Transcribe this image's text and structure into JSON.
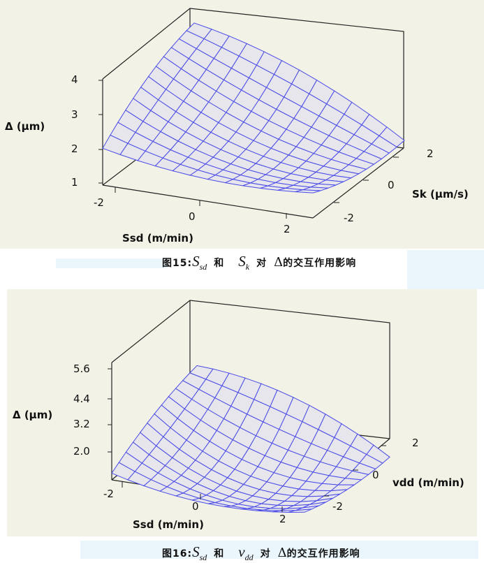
{
  "chart_data": [
    {
      "type": "surface",
      "zlabel": "Δ (μm)",
      "xlabel": "Ssd (m/min)",
      "ylabel": "Sk (μm/s)",
      "x_ticks": [
        "-2",
        "0",
        "2"
      ],
      "y_ticks": [
        "-2",
        "0",
        "2"
      ],
      "z_ticks": [
        "1",
        "2",
        "3",
        "4"
      ],
      "x_range": [
        -3,
        3
      ],
      "y_range": [
        -3,
        3
      ],
      "z_range": [
        0.7,
        4.9
      ],
      "surface_color": "#4a4ae8",
      "fill_color": "#e6e6ec",
      "background": "#f2f2e6",
      "surface_points": [
        {
          "x": -3,
          "y": 3,
          "z": 4.9
        },
        {
          "x": -3,
          "y": -3,
          "z": 2.0
        },
        {
          "x": 3,
          "y": 3,
          "z": 2.1
        },
        {
          "x": 3,
          "y": -3,
          "z": 1.9
        }
      ]
    },
    {
      "type": "surface",
      "zlabel": "Δ (μm)",
      "xlabel": "Ssd (m/min)",
      "ylabel": "vdd (m/min)",
      "x_ticks": [
        "-2",
        "0",
        "2"
      ],
      "y_ticks": [
        "-2",
        "0",
        "2"
      ],
      "z_ticks": [
        "2.0",
        "3.2",
        "4.4",
        "5.6"
      ],
      "x_range": [
        -3,
        3
      ],
      "y_range": [
        -3,
        3
      ],
      "z_range": [
        1.5,
        6.5
      ],
      "surface_color": "#4a4ae8",
      "fill_color": "#e6e6ec",
      "background": "#f2f2e6",
      "surface_points": [
        {
          "x": -3,
          "y": 3,
          "z": 6.5
        },
        {
          "x": -3,
          "y": -3,
          "z": 3.4
        },
        {
          "x": 3,
          "y": 3,
          "z": 3.6
        },
        {
          "x": 3,
          "y": -3,
          "z": 3.2
        }
      ]
    }
  ],
  "captions": [
    {
      "prefix": "图15:",
      "s1": "S",
      "s1_sub": "sd",
      "and": "和",
      "s2": "S",
      "s2_sub": "k",
      "dui": "对",
      "delta": "Δ",
      "suffix": "的交互作用影响"
    },
    {
      "prefix": "图16:",
      "s1": "S",
      "s1_sub": "sd",
      "and": "和",
      "s2": "v",
      "s2_sub": "dd",
      "dui": "对",
      "delta": "Δ",
      "suffix": "的交互作用影响"
    }
  ]
}
